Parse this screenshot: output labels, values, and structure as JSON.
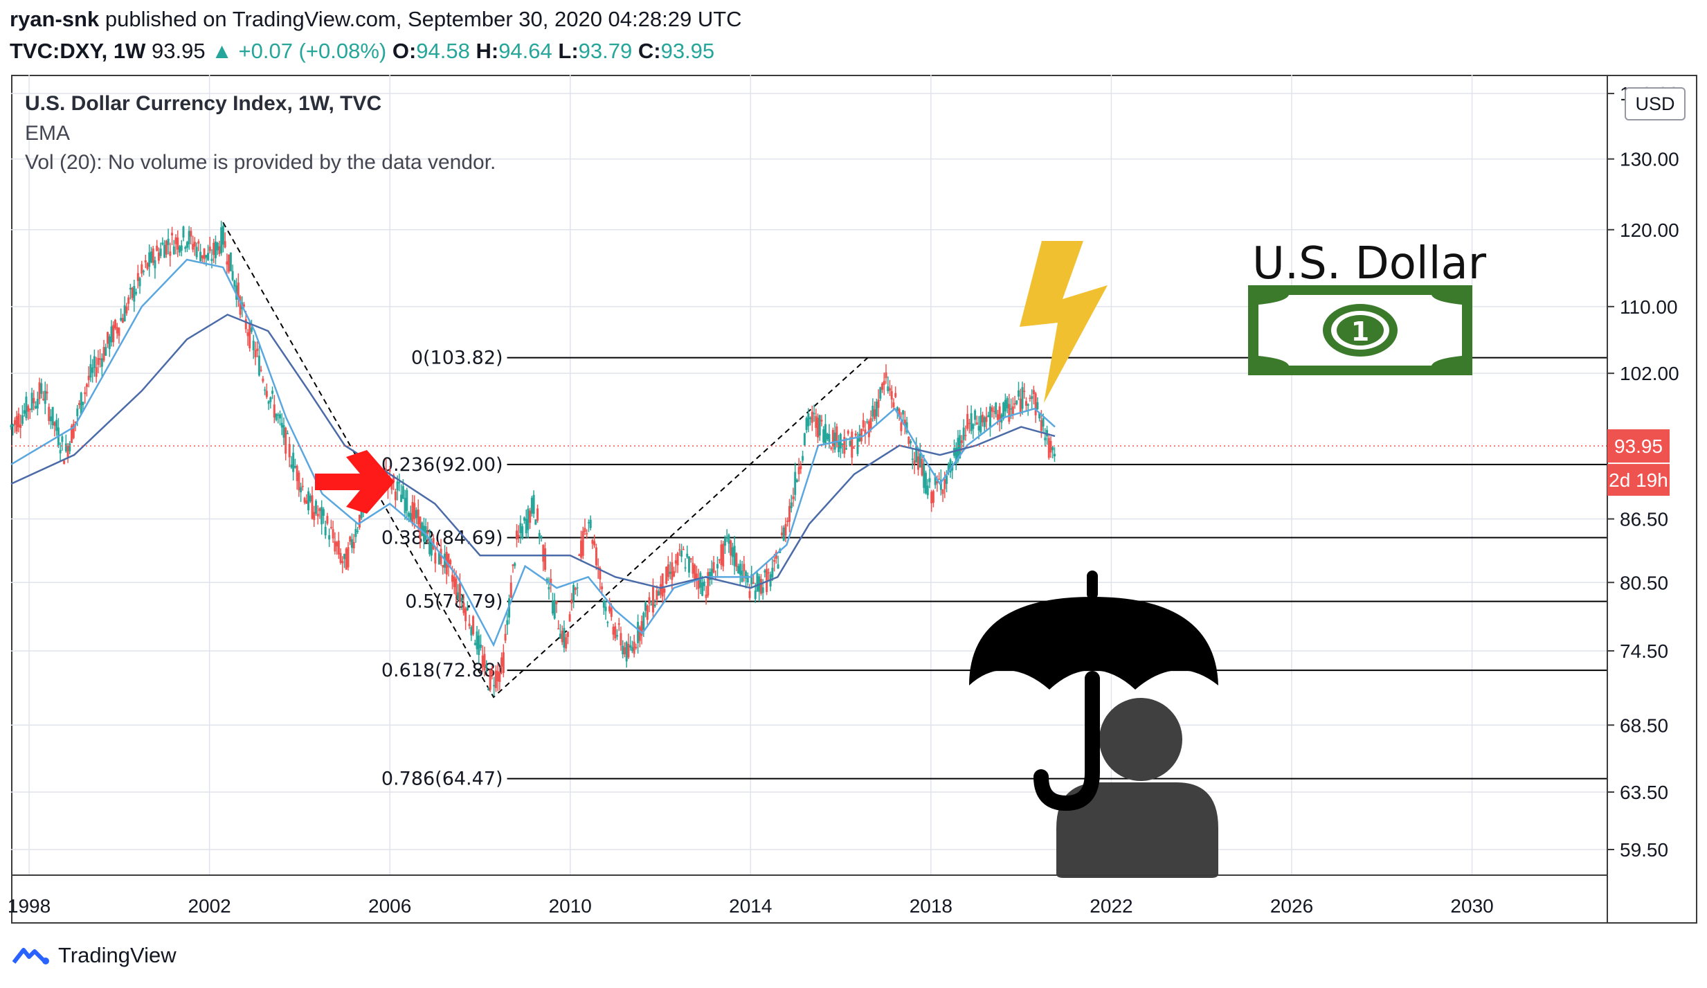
{
  "header": {
    "author": "ryan-snk",
    "published": "published on TradingView.com, September 30, 2020 04:28:29 UTC",
    "symbol": "TVC:DXY, 1W",
    "last": "93.95",
    "change": "+0.07 (+0.08%)",
    "o_label": "O:",
    "o": "94.58",
    "h_label": "H:",
    "h": "94.64",
    "l_label": "L:",
    "l": "93.79",
    "c_label": "C:",
    "c": "93.95"
  },
  "legend": {
    "title": "U.S. Dollar Currency Index, 1W, TVC",
    "ema": "EMA",
    "vol": "Vol (20): No volume is provided by the data vendor."
  },
  "scale_button": "USD",
  "price_badge": "93.95",
  "countdown_badge": "2d 19h",
  "overlay": {
    "dollar_title": "U.S. Dollar",
    "bill_number": "1"
  },
  "footer": {
    "brand": "TradingView"
  },
  "colors": {
    "up": "#26a69a",
    "down": "#ef5350",
    "ema_fast": "#5aa7e0",
    "ema_slow": "#4a6aa8",
    "badge": "#ef5350",
    "arrow": "#ff0000",
    "bolt": "#f0c030",
    "bill": "#3a7a2a"
  },
  "chart_data": {
    "type": "line",
    "title": "U.S. Dollar Currency Index, 1W, TVC",
    "x_ticks": [
      "1998",
      "2002",
      "2006",
      "2010",
      "2014",
      "2018",
      "2022",
      "2026",
      "2030"
    ],
    "y_ticks": [
      "140.00",
      "130.00",
      "120.00",
      "110.00",
      "102.00",
      "86.50",
      "80.50",
      "74.50",
      "68.50",
      "63.50",
      "59.50"
    ],
    "y_scale": "log",
    "xlim": [
      1997.6,
      2033.0
    ],
    "ylim": [
      57.8,
      143.0
    ],
    "current_price": 93.95,
    "fibonacci": [
      {
        "label": "0(103.82)",
        "price": 103.82
      },
      {
        "label": "0.236(92.00)",
        "price": 92.0
      },
      {
        "label": "0.382(84.69)",
        "price": 84.69
      },
      {
        "label": "0.5(78.79)",
        "price": 78.79
      },
      {
        "label": "0.618(72.88)",
        "price": 72.88
      },
      {
        "label": "0.786(64.47)",
        "price": 64.47
      }
    ],
    "series": [
      {
        "points": [
          [
            1997.6,
            96
          ],
          [
            1998.3,
            100
          ],
          [
            1998.8,
            93
          ],
          [
            1999.3,
            101
          ],
          [
            2000.0,
            108
          ],
          [
            2000.6,
            115
          ],
          [
            2001.0,
            118
          ],
          [
            2001.5,
            119
          ],
          [
            2002.0,
            116
          ],
          [
            2002.3,
            119
          ],
          [
            2002.8,
            108
          ],
          [
            2003.3,
            100
          ],
          [
            2003.8,
            93
          ],
          [
            2004.2,
            88
          ],
          [
            2004.6,
            86
          ],
          [
            2005.0,
            82
          ],
          [
            2005.5,
            89
          ],
          [
            2005.9,
            91
          ],
          [
            2006.4,
            88
          ],
          [
            2006.9,
            84
          ],
          [
            2007.3,
            82
          ],
          [
            2007.8,
            77
          ],
          [
            2008.2,
            72
          ],
          [
            2008.5,
            73
          ],
          [
            2008.8,
            84
          ],
          [
            2009.2,
            88
          ],
          [
            2009.6,
            79
          ],
          [
            2009.9,
            75
          ],
          [
            2010.4,
            87
          ],
          [
            2010.8,
            78
          ],
          [
            2011.3,
            74
          ],
          [
            2011.7,
            78
          ],
          [
            2012.0,
            80
          ],
          [
            2012.5,
            83
          ],
          [
            2013.0,
            80
          ],
          [
            2013.5,
            84
          ],
          [
            2014.0,
            80
          ],
          [
            2014.5,
            81
          ],
          [
            2014.9,
            88
          ],
          [
            2015.3,
            97
          ],
          [
            2015.8,
            95
          ],
          [
            2016.3,
            94
          ],
          [
            2016.6,
            96
          ],
          [
            2017.0,
            101
          ],
          [
            2017.5,
            95
          ],
          [
            2018.0,
            89
          ],
          [
            2018.4,
            91
          ],
          [
            2018.8,
            96
          ],
          [
            2019.3,
            97
          ],
          [
            2019.8,
            98
          ],
          [
            2020.2,
            100
          ],
          [
            2020.5,
            96
          ],
          [
            2020.7,
            92.5
          ],
          [
            2020.75,
            93.95
          ]
        ]
      },
      {
        "points": [
          [
            1997.6,
            92
          ],
          [
            1999.0,
            96
          ],
          [
            2000.5,
            110
          ],
          [
            2001.5,
            116
          ],
          [
            2002.3,
            115
          ],
          [
            2003.0,
            107
          ],
          [
            2003.7,
            97
          ],
          [
            2004.5,
            89
          ],
          [
            2005.3,
            86
          ],
          [
            2006.0,
            88
          ],
          [
            2006.8,
            85
          ],
          [
            2007.5,
            81
          ],
          [
            2008.3,
            75
          ],
          [
            2009.0,
            82
          ],
          [
            2009.7,
            80
          ],
          [
            2010.4,
            81
          ],
          [
            2011.0,
            78
          ],
          [
            2011.6,
            76
          ],
          [
            2012.3,
            80
          ],
          [
            2013.0,
            81
          ],
          [
            2014.0,
            81
          ],
          [
            2014.8,
            84
          ],
          [
            2015.5,
            94
          ],
          [
            2016.5,
            95
          ],
          [
            2017.2,
            98
          ],
          [
            2017.8,
            93
          ],
          [
            2018.2,
            90
          ],
          [
            2018.8,
            94
          ],
          [
            2019.6,
            97
          ],
          [
            2020.3,
            98
          ],
          [
            2020.75,
            96
          ]
        ]
      },
      {
        "points": [
          [
            1997.6,
            90
          ],
          [
            1999.0,
            93
          ],
          [
            2000.5,
            100
          ],
          [
            2001.5,
            106
          ],
          [
            2002.4,
            109
          ],
          [
            2003.3,
            107
          ],
          [
            2004.2,
            100
          ],
          [
            2005.0,
            94
          ],
          [
            2006.0,
            91
          ],
          [
            2007.0,
            88
          ],
          [
            2008.0,
            83
          ],
          [
            2009.0,
            83
          ],
          [
            2010.0,
            83
          ],
          [
            2011.0,
            81
          ],
          [
            2012.0,
            80
          ],
          [
            2013.0,
            81
          ],
          [
            2014.0,
            80
          ],
          [
            2014.6,
            81
          ],
          [
            2015.3,
            86
          ],
          [
            2016.3,
            91
          ],
          [
            2017.3,
            94
          ],
          [
            2018.2,
            93
          ],
          [
            2019.0,
            94
          ],
          [
            2020.0,
            96
          ],
          [
            2020.75,
            95
          ]
        ]
      }
    ]
  }
}
